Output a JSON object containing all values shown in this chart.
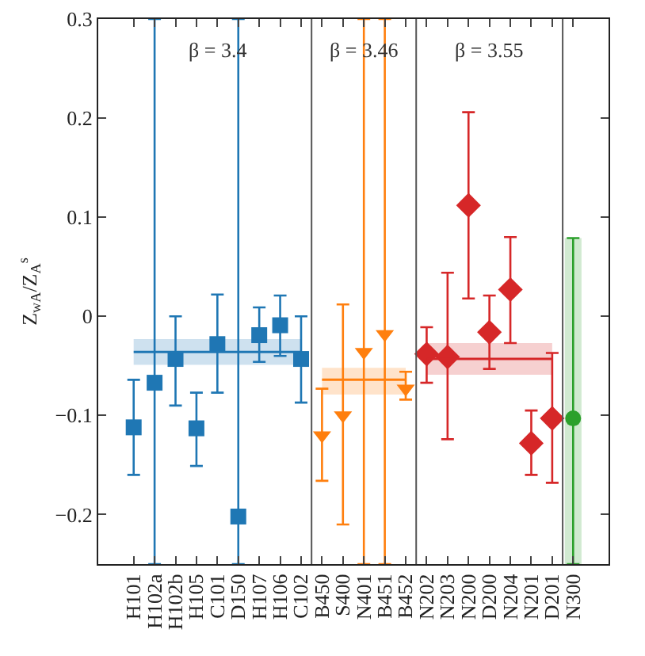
{
  "chart_data": {
    "type": "scatter",
    "ylabel": "Z$_{wA}$/Z$_{A}$$^{s}$",
    "categories": [
      "H101",
      "H102a",
      "H102b",
      "H105",
      "C101",
      "D150",
      "H107",
      "H106",
      "C102",
      "B450",
      "S400",
      "N401",
      "B451",
      "B452",
      "N202",
      "N203",
      "N200",
      "D200",
      "N204",
      "N201",
      "D201",
      "N300"
    ],
    "ylim": [
      -0.25,
      0.3
    ],
    "yticks": [
      -0.2,
      -0.1,
      0,
      0.1,
      0.2,
      0.3
    ],
    "grid": false,
    "annotations": [
      "β = 3.4",
      "β = 3.46",
      "β = 3.55"
    ],
    "series": [
      {
        "color": "#1f77b4",
        "marker": "square",
        "values": [
          -0.112,
          -0.067,
          -0.043,
          -0.113,
          -0.028,
          -0.202,
          -0.019,
          -0.009,
          -0.043,
          null,
          null,
          null,
          null,
          null,
          null,
          null,
          null,
          null,
          null,
          null,
          null,
          null
        ],
        "errors": [
          [
            -0.16,
            -0.064
          ],
          [
            -0.25,
            0.3
          ],
          [
            -0.09,
            0.0
          ],
          [
            -0.151,
            -0.077
          ],
          [
            -0.077,
            0.022
          ],
          [
            -0.25,
            0.3
          ],
          [
            -0.046,
            0.009
          ],
          [
            -0.04,
            0.021
          ],
          [
            -0.087,
            0.0
          ],
          null,
          null,
          null,
          null,
          null,
          null,
          null,
          null,
          null,
          null,
          null,
          null,
          null
        ]
      },
      {
        "color": "#ff7f0e",
        "marker": "triangle",
        "values": [
          null,
          null,
          null,
          null,
          null,
          null,
          null,
          null,
          null,
          -0.12,
          -0.1,
          -0.036,
          -0.018,
          -0.073,
          null,
          null,
          null,
          null,
          null,
          null,
          null,
          null
        ],
        "errors": [
          null,
          null,
          null,
          null,
          null,
          null,
          null,
          null,
          null,
          [
            -0.166,
            -0.073
          ],
          [
            -0.21,
            0.012
          ],
          [
            -0.25,
            0.3
          ],
          [
            -0.25,
            0.3
          ],
          [
            -0.084,
            -0.056
          ],
          null,
          null,
          null,
          null,
          null,
          null,
          null,
          null
        ]
      },
      {
        "color": "#d62728",
        "marker": "diamond",
        "values": [
          null,
          null,
          null,
          null,
          null,
          null,
          null,
          null,
          null,
          null,
          null,
          null,
          null,
          null,
          -0.038,
          -0.041,
          0.112,
          -0.016,
          0.027,
          -0.128,
          -0.103,
          null
        ],
        "errors": [
          null,
          null,
          null,
          null,
          null,
          null,
          null,
          null,
          null,
          null,
          null,
          null,
          null,
          null,
          [
            -0.067,
            -0.011
          ],
          [
            -0.124,
            0.044
          ],
          [
            0.018,
            0.206
          ],
          [
            -0.053,
            0.021
          ],
          [
            -0.027,
            0.08
          ],
          [
            -0.16,
            -0.095
          ],
          [
            -0.168,
            -0.037
          ],
          null
        ]
      },
      {
        "color": "#2ca02c",
        "marker": "circle",
        "values": [
          null,
          null,
          null,
          null,
          null,
          null,
          null,
          null,
          null,
          null,
          null,
          null,
          null,
          null,
          null,
          null,
          null,
          null,
          null,
          null,
          null,
          -0.103
        ],
        "errors": [
          null,
          null,
          null,
          null,
          null,
          null,
          null,
          null,
          null,
          null,
          null,
          null,
          null,
          null,
          null,
          null,
          null,
          null,
          null,
          null,
          null,
          [
            -0.25,
            0.079
          ]
        ]
      },
      {
        "type": "line",
        "color": "#1f77b4",
        "values": [
          -0.036,
          -0.036,
          -0.036,
          -0.036,
          -0.036,
          -0.036,
          -0.036,
          -0.036,
          -0.036,
          null,
          null,
          null,
          null,
          null,
          null,
          null,
          null,
          null,
          null,
          null,
          null,
          null
        ],
        "lower": [
          -0.049,
          -0.049,
          -0.049,
          -0.049,
          -0.049,
          -0.049,
          -0.049,
          -0.049,
          -0.049,
          null,
          null,
          null,
          null,
          null,
          null,
          null,
          null,
          null,
          null,
          null,
          null,
          null
        ],
        "upper": [
          -0.023,
          -0.023,
          -0.023,
          -0.023,
          -0.023,
          -0.023,
          -0.023,
          -0.023,
          -0.023,
          null,
          null,
          null,
          null,
          null,
          null,
          null,
          null,
          null,
          null,
          null,
          null,
          null
        ]
      },
      {
        "type": "line",
        "color": "#ff7f0e",
        "values": [
          null,
          null,
          null,
          null,
          null,
          null,
          null,
          null,
          null,
          -0.064,
          -0.064,
          -0.064,
          -0.064,
          -0.064,
          null,
          null,
          null,
          null,
          null,
          null,
          null,
          null
        ],
        "lower": [
          null,
          null,
          null,
          null,
          null,
          null,
          null,
          null,
          null,
          -0.079,
          -0.079,
          -0.079,
          -0.079,
          -0.079,
          null,
          null,
          null,
          null,
          null,
          null,
          null,
          null
        ],
        "upper": [
          null,
          null,
          null,
          null,
          null,
          null,
          null,
          null,
          null,
          -0.052,
          -0.052,
          -0.052,
          -0.052,
          -0.052,
          null,
          null,
          null,
          null,
          null,
          null,
          null,
          null
        ]
      },
      {
        "type": "line",
        "color": "#d62728",
        "values": [
          null,
          null,
          null,
          null,
          null,
          null,
          null,
          null,
          null,
          null,
          null,
          null,
          null,
          null,
          -0.043,
          -0.043,
          -0.043,
          -0.043,
          -0.043,
          -0.043,
          -0.043,
          null
        ],
        "lower": [
          null,
          null,
          null,
          null,
          null,
          null,
          null,
          null,
          null,
          null,
          null,
          null,
          null,
          null,
          -0.059,
          -0.059,
          -0.059,
          -0.059,
          -0.059,
          -0.059,
          -0.059,
          null
        ],
        "upper": [
          null,
          null,
          null,
          null,
          null,
          null,
          null,
          null,
          null,
          null,
          null,
          null,
          null,
          null,
          -0.027,
          -0.027,
          -0.027,
          -0.027,
          -0.027,
          -0.027,
          -0.027,
          null
        ]
      }
    ]
  }
}
